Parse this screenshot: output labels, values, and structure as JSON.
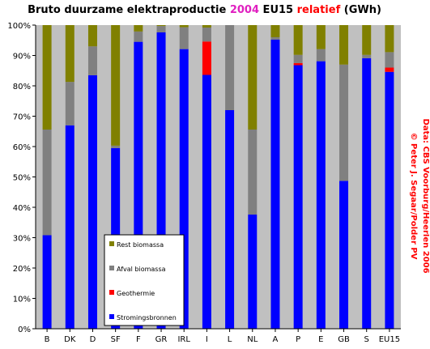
{
  "title": {
    "part1": "Bruto duurzame elektraproductie ",
    "year": "2004",
    "part2": " EU15 ",
    "relative": "relatief",
    "part3": " (GWh)"
  },
  "credit": [
    "© Peter J. Segaar/Polder PV",
    "Data: CBS Voorburg/Heerlen 2006"
  ],
  "colors": {
    "background": "#c0c0c0",
    "stromingsbronnen": "#0000ff",
    "geothermie": "#ff0000",
    "afval_biomassa": "#808080",
    "rest_biomassa": "#808000",
    "credit": "#ff0000"
  },
  "chart_data": {
    "type": "bar",
    "stacked": true,
    "categories": [
      "B",
      "DK",
      "D",
      "SF",
      "F",
      "GR",
      "IRL",
      "I",
      "L",
      "NL",
      "A",
      "P",
      "E",
      "GB",
      "S",
      "EU15"
    ],
    "ylim": [
      0,
      100
    ],
    "yticks": [
      "0%",
      "10%",
      "20%",
      "30%",
      "40%",
      "50%",
      "60%",
      "70%",
      "80%",
      "90%",
      "100%"
    ],
    "legend_position": "center-left",
    "series": [
      {
        "name": "Stromingsbronnen",
        "values": [
          30.8,
          67.0,
          83.5,
          59.5,
          94.5,
          97.6,
          92.1,
          83.6,
          72.0,
          37.6,
          95.2,
          86.8,
          88.1,
          48.7,
          89.1,
          84.6
        ]
      },
      {
        "name": "Geothermie",
        "values": [
          0,
          0,
          0,
          0,
          0,
          0,
          0,
          11.0,
          0,
          0,
          0,
          0.7,
          0,
          0,
          0,
          1.4
        ]
      },
      {
        "name": "Afval biomassa",
        "values": [
          34.8,
          14.3,
          9.5,
          0.8,
          3.4,
          2.1,
          7.2,
          4.6,
          28.0,
          28.0,
          0.8,
          2.7,
          4.0,
          38.3,
          1.1,
          5.1
        ]
      },
      {
        "name": "Rest biomassa",
        "values": [
          34.4,
          18.7,
          7.0,
          39.7,
          2.1,
          0.3,
          0.7,
          0.8,
          0,
          34.4,
          4.0,
          9.8,
          7.9,
          13.0,
          9.8,
          8.9
        ]
      }
    ]
  }
}
